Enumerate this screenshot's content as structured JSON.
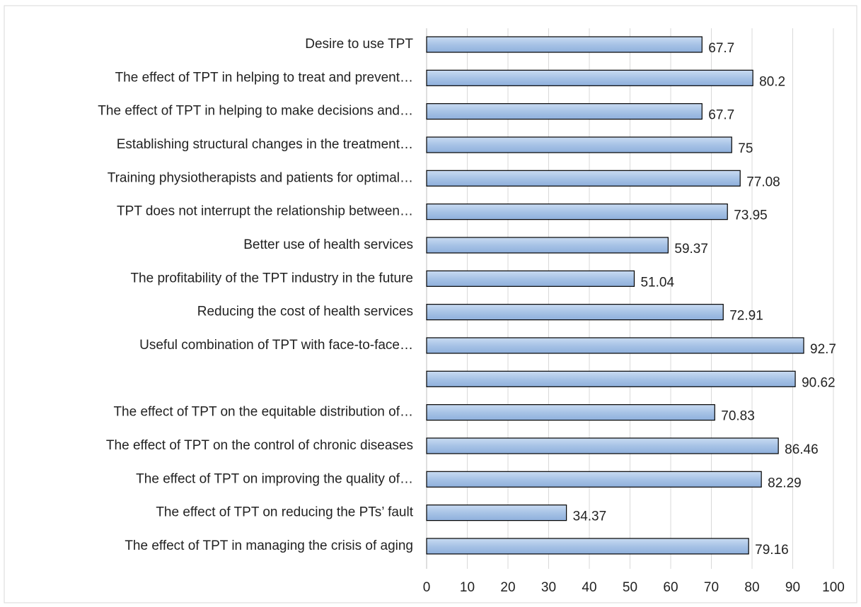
{
  "chart_data": {
    "type": "bar",
    "orientation": "horizontal",
    "categories": [
      "Desire to use TPT",
      "The effect of TPT in helping to treat and prevent…",
      "The effect of TPT in helping to make decisions and…",
      "Establishing structural changes in the treatment…",
      "Training physiotherapists and patients for optimal…",
      "TPT does not interrupt the relationship between…",
      "Better use of health services",
      "The profitability of the TPT industry in the future",
      "Reducing the cost of health services",
      "Useful combination of TPT with face-to-face…",
      null,
      "The effect of TPT on the equitable distribution of…",
      "The effect of TPT on the control of chronic diseases",
      "The effect of TPT on improving the quality of…",
      "The effect of TPT on reducing the PTs’ fault",
      "The effect of TPT in managing the crisis of aging"
    ],
    "values": [
      67.7,
      80.2,
      67.7,
      75,
      77.08,
      73.95,
      59.37,
      51.04,
      72.91,
      92.7,
      90.62,
      70.83,
      86.46,
      82.29,
      34.37,
      79.16
    ],
    "color": "#a7c3e6",
    "xlim": [
      0,
      100
    ],
    "xticks": [
      0,
      10,
      20,
      30,
      40,
      50,
      60,
      70,
      80,
      90,
      100
    ],
    "grid": true
  }
}
